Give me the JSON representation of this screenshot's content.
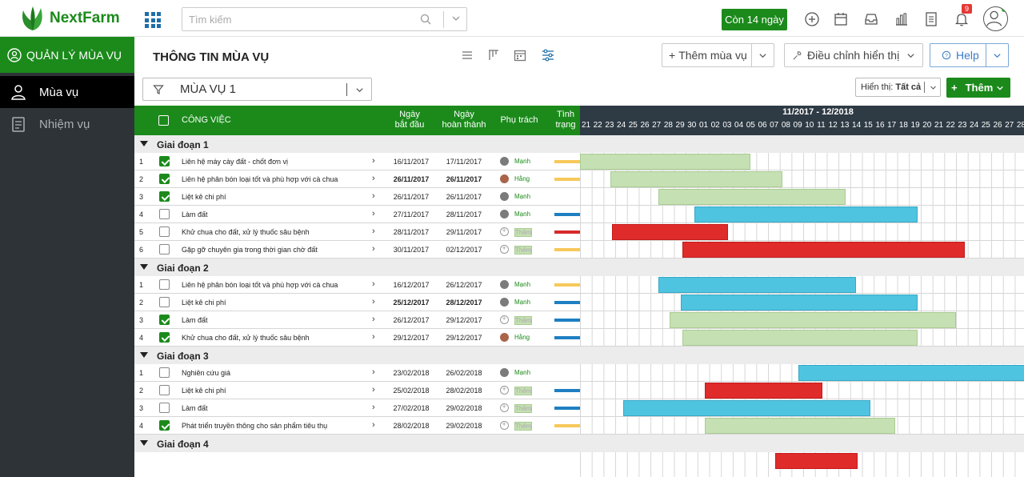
{
  "brand": {
    "name": "NextFarm"
  },
  "search": {
    "placeholder": "Tìm kiếm"
  },
  "trial": {
    "label": "Còn 14 ngày"
  },
  "notifications": {
    "count": "9"
  },
  "sidebar": {
    "title": "QUẢN LÝ MÙA VỤ",
    "items": [
      {
        "label": "Mùa vụ",
        "active": true
      },
      {
        "label": "Nhiệm vụ",
        "active": false
      }
    ]
  },
  "header": {
    "title": "THÔNG TIN MÙA VỤ",
    "add_season": "Thêm mùa vụ",
    "adjust_view": "Điều chỉnh hiển thị",
    "help": "Help"
  },
  "filter": {
    "season": "MÙA VỤ 1",
    "display_label": "Hiển thị:",
    "display_value": "Tất cả",
    "add_label": "Thêm"
  },
  "table": {
    "headers": {
      "task": "CÔNG VIỆC",
      "start": [
        "Ngày",
        "bắt đầu"
      ],
      "end": [
        "Ngày",
        "hoàn thành"
      ],
      "owner": "Phụ trách",
      "status": [
        "Tình",
        "trạng"
      ]
    }
  },
  "gantt": {
    "range": "11/2017 - 12/2018",
    "days": [
      "21",
      "22",
      "23",
      "24",
      "25",
      "26",
      "27",
      "28",
      "29",
      "30",
      "01",
      "02",
      "03",
      "04",
      "05",
      "06",
      "07",
      "08",
      "09",
      "10",
      "11",
      "12",
      "13",
      "14",
      "15",
      "16",
      "17",
      "18",
      "19",
      "20",
      "21",
      "22",
      "23",
      "24",
      "25",
      "26",
      "27",
      "28"
    ]
  },
  "phases": [
    {
      "name": "Giai đoạn 1",
      "tasks": [
        {
          "no": "1",
          "done": true,
          "name": "Liên hệ máy cày đất - chốt đơn vị",
          "start": "16/11/2017",
          "end": "17/11/2017",
          "owner": "Mạnh",
          "owner_type": "m",
          "status": "yellow",
          "bar": {
            "color": "green",
            "from": 0,
            "span": 14.5
          },
          "bold": false
        },
        {
          "no": "2",
          "done": true,
          "name": "Liên hệ phân bón loại tốt và phù hợp với cà chua",
          "start": "26/11/2017",
          "end": "26/11/2017",
          "owner": "Hằng",
          "owner_type": "f",
          "status": "yellow",
          "bar": {
            "color": "green",
            "from": 2.6,
            "span": 14.6
          },
          "bold": true
        },
        {
          "no": "3",
          "done": true,
          "name": "Liệt kê chi phí",
          "start": "26/11/2017",
          "end": "26/11/2017",
          "owner": "Mạnh",
          "owner_type": "m",
          "status": "none",
          "bar": {
            "color": "green",
            "from": 6.7,
            "span": 15.9
          },
          "bold": false
        },
        {
          "no": "4",
          "done": false,
          "name": "Làm đất",
          "start": "27/11/2017",
          "end": "28/11/2017",
          "owner": "Mạnh",
          "owner_type": "m",
          "status": "blue",
          "bar": {
            "color": "blue",
            "from": 9.7,
            "span": 19
          },
          "bold": false
        },
        {
          "no": "5",
          "done": false,
          "name": "Khử chua cho đất, xử lý thuốc sâu bệnh",
          "start": "28/11/2017",
          "end": "29/11/2017",
          "owner": "Thêm",
          "owner_type": "add",
          "status": "red",
          "bar": {
            "color": "red",
            "from": 2.7,
            "span": 9.9
          },
          "bold": false
        },
        {
          "no": "6",
          "done": false,
          "name": "Gặp gỡ chuyên gia trong thời gian chờ đất",
          "start": "30/11/2017",
          "end": "02/12/2017",
          "owner": "Thêm",
          "owner_type": "add",
          "status": "yellow",
          "bar": {
            "color": "red",
            "from": 8.7,
            "span": 24
          },
          "bold": false
        }
      ]
    },
    {
      "name": "Giai đoạn 2",
      "tasks": [
        {
          "no": "1",
          "done": false,
          "name": "Liên hệ phân bón loại tốt và phù hợp với cà chua",
          "start": "16/12/2017",
          "end": "26/12/2017",
          "owner": "Mạnh",
          "owner_type": "m",
          "status": "yellow",
          "bar": {
            "color": "blue",
            "from": 6.7,
            "span": 16.8
          },
          "bold": false
        },
        {
          "no": "2",
          "done": false,
          "name": "Liệt kê chi phí",
          "start": "25/12/2017",
          "end": "28/12/2017",
          "owner": "Mạnh",
          "owner_type": "m",
          "status": "blue",
          "bar": {
            "color": "blue",
            "from": 8.6,
            "span": 20.1
          },
          "bold": true
        },
        {
          "no": "3",
          "done": true,
          "name": "Làm đất",
          "start": "26/12/2017",
          "end": "29/12/2017",
          "owner": "Thêm",
          "owner_type": "add",
          "status": "blue",
          "bar": {
            "color": "green",
            "from": 7.6,
            "span": 24.4
          },
          "bold": false
        },
        {
          "no": "4",
          "done": true,
          "name": "Khử chua cho đất, xử lý thuốc sâu bệnh",
          "start": "29/12/2017",
          "end": "29/12/2017",
          "owner": "Hằng",
          "owner_type": "f",
          "status": "blue",
          "bar": {
            "color": "green",
            "from": 8.7,
            "span": 20
          },
          "bold": false
        }
      ]
    },
    {
      "name": "Giai đoạn 3",
      "tasks": [
        {
          "no": "1",
          "done": false,
          "name": "Nghiên cứu giá",
          "start": "23/02/2018",
          "end": "26/02/2018",
          "owner": "Mạnh",
          "owner_type": "m",
          "status": "none",
          "bar": {
            "color": "blue",
            "from": 18.6,
            "span": 19.4
          },
          "bold": false
        },
        {
          "no": "2",
          "done": false,
          "name": "Liệt kê chi phí",
          "start": "25/02/2018",
          "end": "28/02/2018",
          "owner": "Thêm",
          "owner_type": "add",
          "status": "blue",
          "bar": {
            "color": "red",
            "from": 10.6,
            "span": 10
          },
          "bold": false
        },
        {
          "no": "3",
          "done": false,
          "name": "Làm đất",
          "start": "27/02/2018",
          "end": "29/02/2018",
          "owner": "Thêm",
          "owner_type": "add",
          "status": "blue",
          "bar": {
            "color": "blue",
            "from": 3.7,
            "span": 21
          },
          "bold": false
        },
        {
          "no": "4",
          "done": true,
          "name": "Phát triển truyền thông cho sản phẩm tiêu thụ",
          "start": "28/02/2018",
          "end": "29/02/2018",
          "owner": "Thêm",
          "owner_type": "add",
          "status": "yellow",
          "bar": {
            "color": "green",
            "from": 10.6,
            "span": 16.2
          },
          "bold": false
        }
      ]
    },
    {
      "name": "Giai đoạn 4",
      "tasks": []
    }
  ],
  "trailing_bar": {
    "color": "red",
    "from": 16.6,
    "span": 7
  }
}
